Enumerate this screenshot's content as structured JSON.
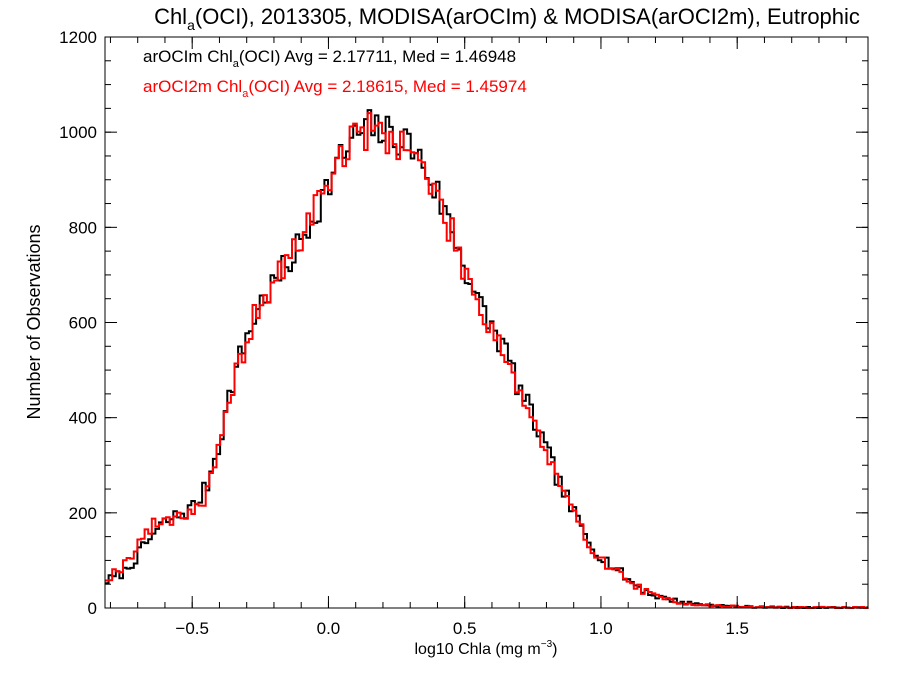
{
  "chart_data": {
    "type": "line",
    "step": true,
    "title": {
      "prefix": "Chl",
      "sub": "a",
      "rest": "(OCI), 2013305, MODISA(arOCIm) & MODISA(arOCI2m), Eutrophic"
    },
    "xlabel": {
      "prefix": "log10 Chla (mg m",
      "sup": "−3",
      "suffix": ")"
    },
    "ylabel": "Number of Observations",
    "xlim": [
      -0.82,
      1.98
    ],
    "ylim": [
      0,
      1200
    ],
    "xticks": [
      {
        "value": -0.5,
        "label": "−0.5"
      },
      {
        "value": 0.0,
        "label": "0.0"
      },
      {
        "value": 0.5,
        "label": "0.5"
      },
      {
        "value": 1.0,
        "label": "1.0"
      },
      {
        "value": 1.5,
        "label": "1.5"
      }
    ],
    "yticks": [
      {
        "value": 0,
        "label": "0"
      },
      {
        "value": 200,
        "label": "200"
      },
      {
        "value": 400,
        "label": "400"
      },
      {
        "value": 600,
        "label": "600"
      },
      {
        "value": 800,
        "label": "800"
      },
      {
        "value": 1000,
        "label": "1000"
      },
      {
        "value": 1200,
        "label": "1200"
      }
    ],
    "x_minor_step": 0.1,
    "y_minor_step": 50,
    "grid": false,
    "legend": {
      "placement": "top-left",
      "entries": [
        {
          "prefix": "arOCIm Chl",
          "sub": "a",
          "rest": "(OCI) Avg = 2.17711, Med = 1.46948",
          "color": "#000000"
        },
        {
          "prefix": "arOCI2m Chl",
          "sub": "a",
          "rest": "(OCI) Avg = 2.18615, Med = 1.45974",
          "color": "#ff0000"
        }
      ]
    },
    "bin_width": 0.0132,
    "series": [
      {
        "color": "#000000",
        "x": [
          -0.82,
          -0.75,
          -0.7,
          -0.65,
          -0.6,
          -0.55,
          -0.5,
          -0.45,
          -0.4,
          -0.35,
          -0.3,
          -0.25,
          -0.2,
          -0.15,
          -0.1,
          -0.05,
          0.0,
          0.05,
          0.1,
          0.15,
          0.2,
          0.25,
          0.3,
          0.35,
          0.4,
          0.45,
          0.5,
          0.55,
          0.6,
          0.65,
          0.7,
          0.75,
          0.8,
          0.85,
          0.9,
          0.95,
          1.0,
          1.05,
          1.1,
          1.15,
          1.2,
          1.3,
          1.4,
          1.5,
          1.6,
          1.7,
          1.8,
          1.98
        ],
        "y": [
          55,
          75,
          110,
          150,
          180,
          195,
          210,
          250,
          350,
          480,
          570,
          640,
          680,
          720,
          770,
          830,
          890,
          950,
          990,
          1010,
          1000,
          990,
          975,
          930,
          870,
          800,
          720,
          640,
          590,
          540,
          460,
          400,
          330,
          260,
          200,
          145,
          110,
          85,
          60,
          40,
          25,
          12,
          6,
          3,
          2,
          1,
          1,
          1
        ],
        "noise": 28,
        "seed": 7
      },
      {
        "color": "#ff0000",
        "x": [
          -0.82,
          -0.75,
          -0.7,
          -0.65,
          -0.6,
          -0.55,
          -0.5,
          -0.45,
          -0.4,
          -0.35,
          -0.3,
          -0.25,
          -0.2,
          -0.15,
          -0.1,
          -0.05,
          0.0,
          0.05,
          0.1,
          0.15,
          0.2,
          0.25,
          0.3,
          0.35,
          0.4,
          0.45,
          0.5,
          0.55,
          0.6,
          0.65,
          0.7,
          0.75,
          0.8,
          0.85,
          0.9,
          0.95,
          1.0,
          1.05,
          1.1,
          1.15,
          1.2,
          1.3,
          1.4,
          1.5,
          1.6,
          1.7,
          1.8,
          1.98
        ],
        "y": [
          60,
          90,
          135,
          170,
          185,
          195,
          205,
          230,
          330,
          470,
          565,
          640,
          680,
          725,
          780,
          840,
          900,
          955,
          990,
          1005,
          995,
          985,
          965,
          920,
          860,
          790,
          715,
          640,
          590,
          535,
          455,
          395,
          325,
          255,
          195,
          140,
          105,
          80,
          58,
          38,
          24,
          11,
          5,
          3,
          2,
          1,
          1,
          1
        ],
        "noise": 28,
        "seed": 19
      }
    ]
  }
}
